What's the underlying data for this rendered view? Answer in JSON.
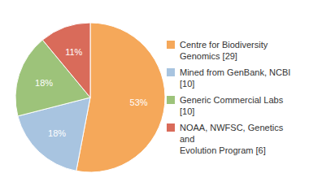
{
  "chart_data": {
    "type": "pie",
    "categories": [
      "Centre for Biodiversity\nGenomics [29]",
      "Mined from GenBank, NCBI [10]",
      "Generic Commercial Labs [10]",
      "NOAA, NWFSC, Genetics and\nEvolution Program [6]"
    ],
    "values": [
      53,
      18,
      18,
      11
    ],
    "value_labels": [
      "53%",
      "18%",
      "18%",
      "11%"
    ],
    "colors": [
      "#F5A85A",
      "#A8C4E0",
      "#9DC37A",
      "#D96B5A"
    ],
    "data_labels": true,
    "legend": "right"
  }
}
